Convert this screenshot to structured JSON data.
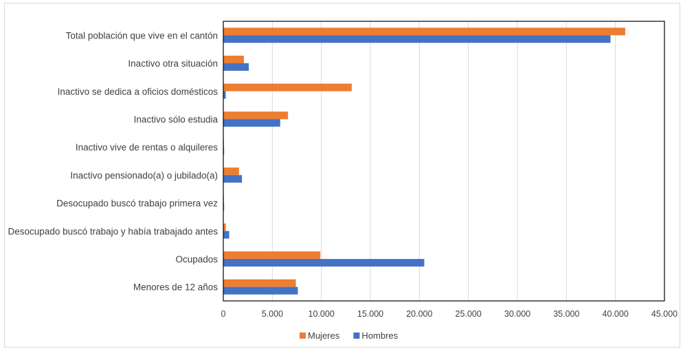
{
  "chart_data": {
    "type": "bar",
    "orientation": "horizontal",
    "categories": [
      "Total población que vive en el cantón",
      "Inactivo otra situación",
      "Inactivo se dedica a oficios domésticos",
      "Inactivo sólo estudia",
      "Inactivo vive de rentas o alquileres",
      "Inactivo pensionado(a) o jubilado(a)",
      "Desocupado buscó  trabajo primera vez",
      "Desocupado buscó trabajo y había trabajado antes",
      "Ocupados",
      "Menores de 12 años"
    ],
    "series": [
      {
        "name": "Mujeres",
        "color": "#ED7D31",
        "values": [
          41000,
          2100,
          13100,
          6600,
          60,
          1600,
          60,
          250,
          9900,
          7400
        ]
      },
      {
        "name": "Hombres",
        "color": "#4472C4",
        "values": [
          39500,
          2600,
          250,
          5800,
          80,
          1900,
          80,
          600,
          20500,
          7600
        ]
      }
    ],
    "xlim": [
      0,
      45000
    ],
    "ticks": [
      0,
      5000,
      10000,
      15000,
      20000,
      25000,
      30000,
      35000,
      40000,
      45000
    ],
    "tick_labels": [
      "0",
      "5.000",
      "10.000",
      "15.000",
      "20.000",
      "25.000",
      "30.000",
      "35.000",
      "40.000",
      "45.000"
    ],
    "gridlines": "vertical",
    "legend": "bottom",
    "title": "",
    "xlabel": "",
    "ylabel": ""
  }
}
